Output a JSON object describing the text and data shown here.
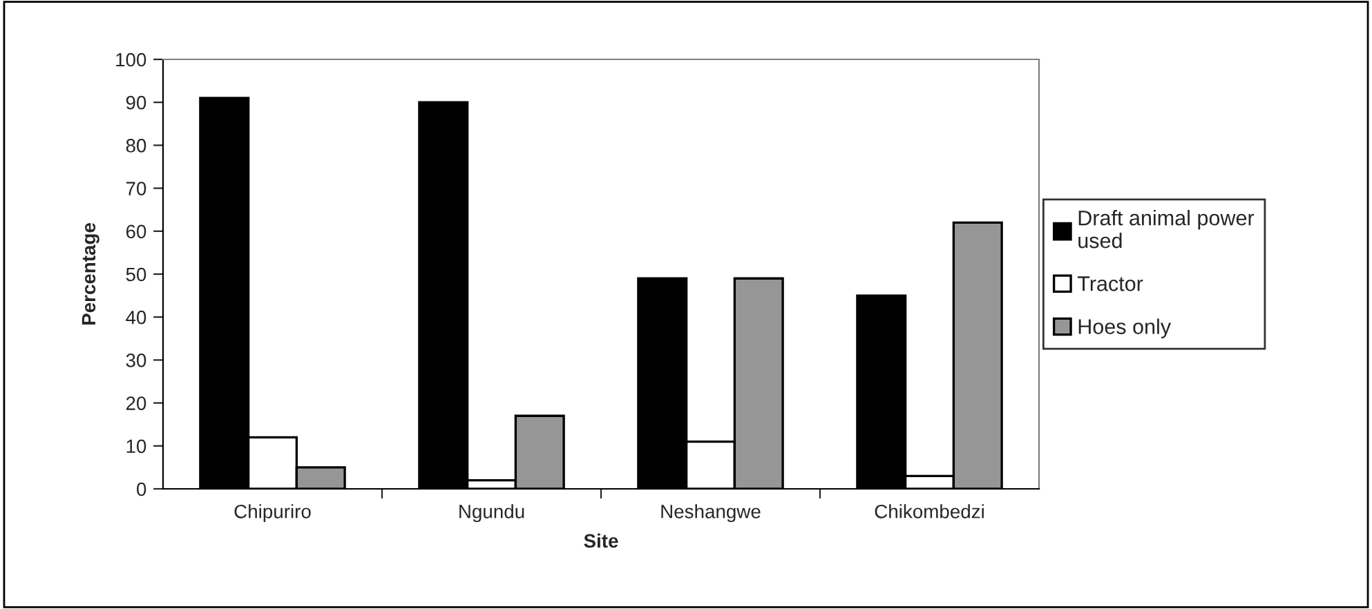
{
  "chart_data": {
    "type": "bar",
    "xlabel": "Site",
    "ylabel": "Percentage",
    "categories": [
      "Chipuriro",
      "Ngundu",
      "Neshangwe",
      "Chikombedzi"
    ],
    "series": [
      {
        "name": "Draft animal power\nused",
        "color": "#000000",
        "values": [
          91,
          90,
          49,
          45
        ]
      },
      {
        "name": "Tractor",
        "color": "#ffffff",
        "values": [
          12,
          2,
          11,
          3
        ]
      },
      {
        "name": "Hoes only",
        "color": "#969696",
        "values": [
          5,
          17,
          49,
          62
        ]
      }
    ],
    "ylim": [
      0,
      100
    ],
    "yticks": [
      0,
      10,
      20,
      30,
      40,
      50,
      60,
      70,
      80,
      90,
      100
    ],
    "grid": false,
    "legend": "right"
  }
}
